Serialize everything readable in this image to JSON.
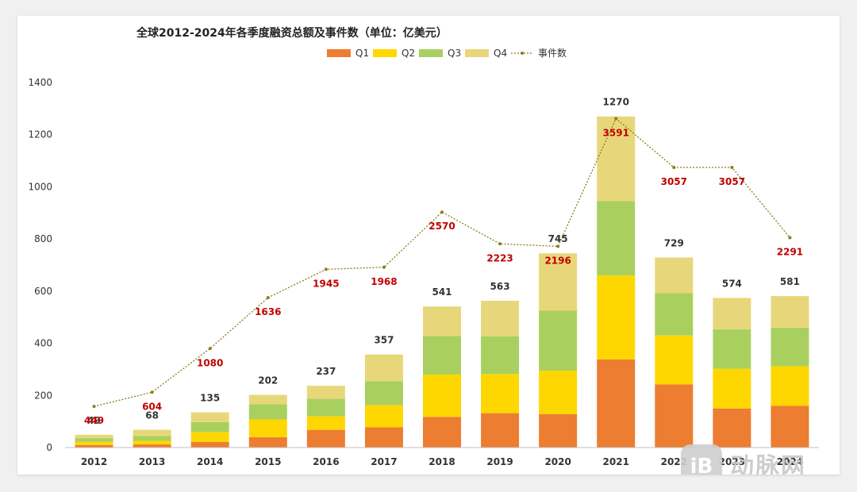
{
  "chart_data": {
    "type": "bar",
    "stacked": true,
    "title": "全球2012-2024年各季度融资总额及事件数（单位：亿美元）",
    "categories": [
      "2012",
      "2013",
      "2014",
      "2015",
      "2016",
      "2017",
      "2018",
      "2019",
      "2020",
      "2021",
      "2022",
      "2023",
      "2024"
    ],
    "series": [
      {
        "name": "Q1",
        "color": "#ed7d31",
        "values": [
          10,
          12,
          22,
          40,
          68,
          78,
          118,
          132,
          128,
          338,
          242,
          150,
          160
        ]
      },
      {
        "name": "Q2",
        "color": "#ffd700",
        "values": [
          12,
          14,
          38,
          68,
          52,
          85,
          162,
          150,
          167,
          322,
          188,
          152,
          152
        ]
      },
      {
        "name": "Q3",
        "color": "#a9d05f",
        "values": [
          14,
          18,
          38,
          58,
          67,
          92,
          148,
          145,
          230,
          285,
          162,
          152,
          148
        ]
      },
      {
        "name": "Q4",
        "color": "#e8d77a",
        "values": [
          13,
          24,
          37,
          36,
          50,
          102,
          113,
          136,
          220,
          325,
          137,
          120,
          121
        ]
      }
    ],
    "totals": [
      49,
      68,
      135,
      202,
      237,
      357,
      541,
      563,
      745,
      1270,
      729,
      574,
      581
    ],
    "line_series": {
      "name": "事件数",
      "color": "#8b7d1a",
      "values": [
        449,
        604,
        1080,
        1636,
        1945,
        1968,
        2570,
        2223,
        2196,
        3591,
        3057,
        3057,
        2291
      ]
    },
    "y_ticks": [
      "0",
      "200",
      "400",
      "600",
      "800",
      "1000",
      "1200",
      "1400"
    ],
    "ylim": [
      0,
      1400
    ],
    "legend_position": "top",
    "grid": false
  },
  "watermark": {
    "badge": "iB",
    "text": "动脉网"
  }
}
